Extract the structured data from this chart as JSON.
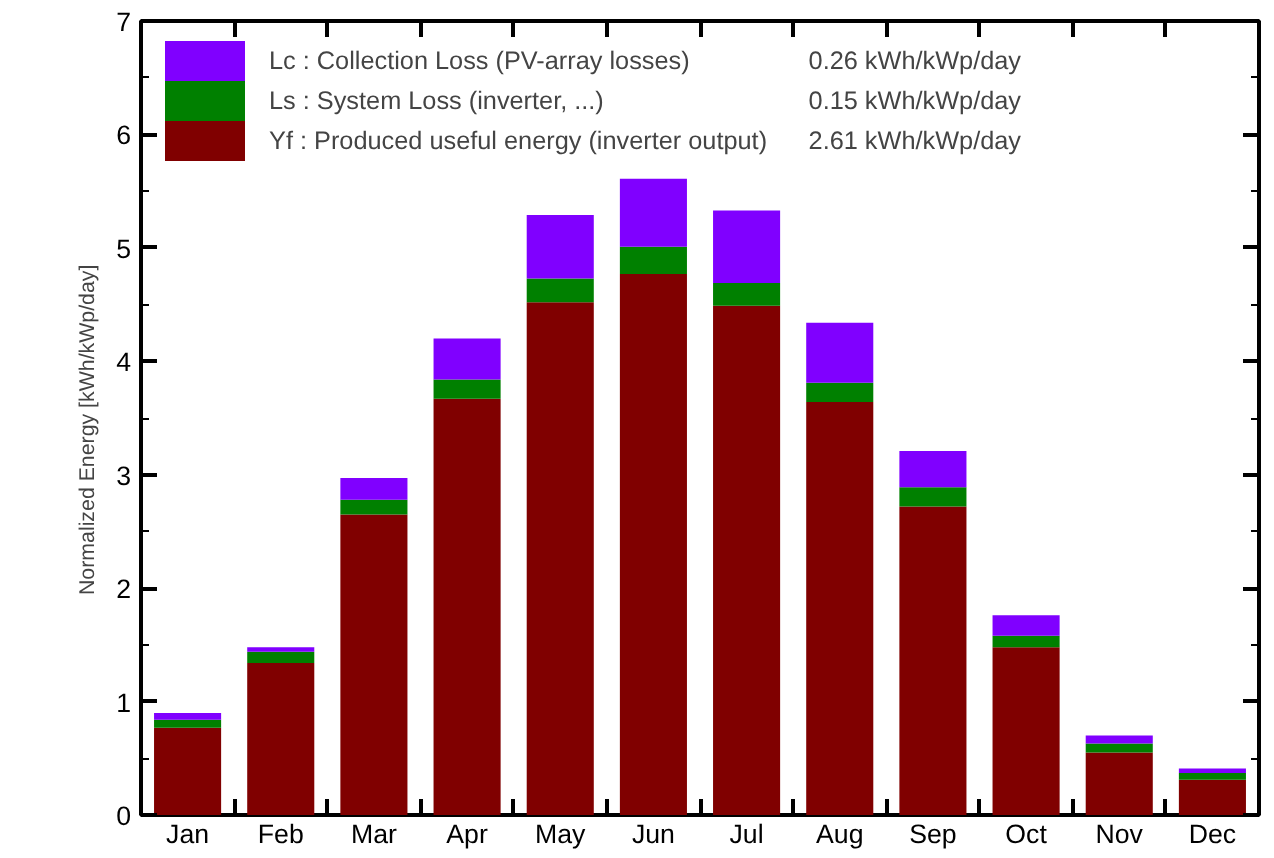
{
  "chart_data": {
    "type": "bar",
    "stacked": true,
    "ylabel": "Normalized   Energy   [kWh/kWp/day]",
    "categories": [
      "Jan",
      "Feb",
      "Mar",
      "Apr",
      "May",
      "Jun",
      "Jul",
      "Aug",
      "Sep",
      "Oct",
      "Nov",
      "Dec"
    ],
    "series": [
      {
        "name": "Yf : Produced useful energy  (inverter output)",
        "color": "#800000",
        "values": [
          0.77,
          1.34,
          2.65,
          3.67,
          4.52,
          4.77,
          4.49,
          3.64,
          2.72,
          1.48,
          0.55,
          0.31
        ]
      },
      {
        "name": "Ls : System Loss  (inverter, ...)",
        "color": "#008000",
        "values": [
          0.07,
          0.1,
          0.13,
          0.17,
          0.21,
          0.24,
          0.2,
          0.17,
          0.17,
          0.1,
          0.08,
          0.06
        ]
      },
      {
        "name": "Lc : Collection Loss (PV-array losses)",
        "color": "#8000ff",
        "values": [
          0.06,
          0.04,
          0.19,
          0.36,
          0.56,
          0.6,
          0.64,
          0.53,
          0.32,
          0.18,
          0.07,
          0.04
        ]
      }
    ],
    "annotations": [
      "2.61 kWh/kWp/day",
      "0.15 kWh/kWp/day",
      "0.26 kWh/kWp/day"
    ],
    "ylim": [
      0,
      7
    ],
    "yticks": [
      0,
      1,
      2,
      3,
      4,
      5,
      6,
      7
    ],
    "grid": false,
    "legend": "top left"
  }
}
